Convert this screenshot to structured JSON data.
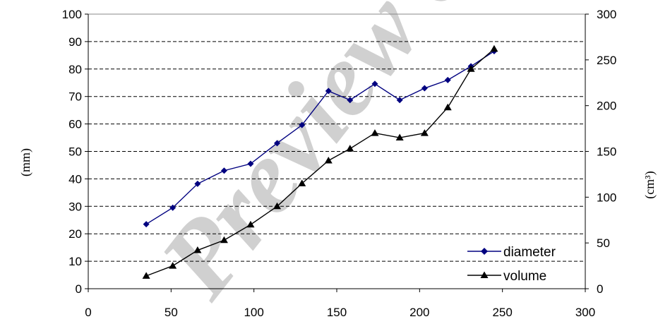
{
  "chart_data": {
    "type": "line",
    "x_axis": {
      "range": [
        0,
        300
      ],
      "ticks": [
        0,
        50,
        100,
        150,
        200,
        250,
        300
      ]
    },
    "y_left": {
      "label": "(mm)",
      "range": [
        0,
        100
      ],
      "ticks": [
        0,
        10,
        20,
        30,
        40,
        50,
        60,
        70,
        80,
        90,
        100
      ]
    },
    "y_right": {
      "label": "(cm³)",
      "range": [
        0,
        300
      ],
      "ticks": [
        0,
        50,
        100,
        150,
        200,
        250,
        300
      ]
    },
    "grid": "horizontal dashed",
    "legend_position": "bottom-right",
    "series": [
      {
        "name": "diameter",
        "axis": "left",
        "color": "#000080",
        "marker": "diamond",
        "x": [
          35,
          51,
          66,
          82,
          98,
          114,
          129,
          145,
          158,
          173,
          188,
          203,
          217,
          231,
          245
        ],
        "y": [
          23.5,
          29.5,
          38.2,
          43,
          45.5,
          53,
          59.6,
          72,
          68.7,
          74.6,
          68.7,
          73,
          76,
          81,
          86.5
        ]
      },
      {
        "name": "volume",
        "axis": "right",
        "color": "#000000",
        "marker": "triangle",
        "x": [
          35,
          51,
          66,
          82,
          98,
          114,
          129,
          145,
          158,
          173,
          188,
          203,
          217,
          231,
          245
        ],
        "y": [
          14,
          25,
          42,
          53,
          70,
          90,
          115,
          140,
          153,
          170,
          165,
          170,
          198,
          240,
          262
        ]
      }
    ]
  },
  "watermark": {
    "text": "Preview of SIL"
  }
}
